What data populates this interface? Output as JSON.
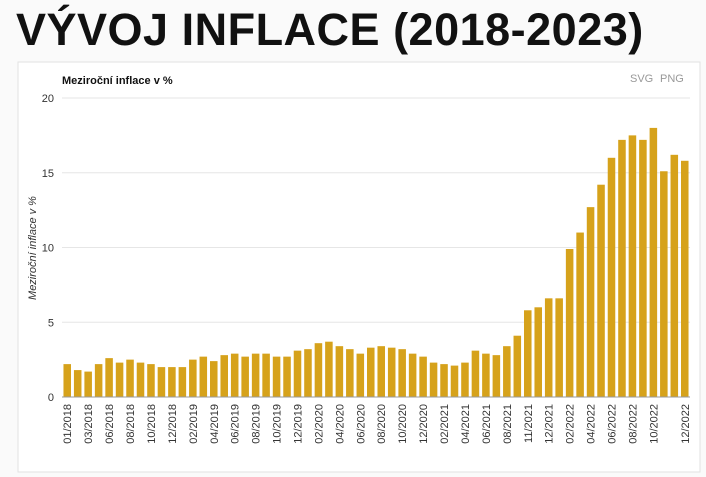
{
  "header": {
    "title": "VÝVOJ INFLACE (2018-2023)"
  },
  "toolbar": [
    "SVG",
    "PNG"
  ],
  "chart_data": {
    "type": "bar",
    "title": "Meziroční inflace v %",
    "ylabel": "Meziroční inflace v %",
    "categories": [
      "01/2018",
      null,
      "03/2018",
      null,
      "06/2018",
      null,
      "08/2018",
      null,
      "10/2018",
      null,
      "12/2018",
      null,
      "02/2019",
      null,
      "04/2019",
      null,
      "06/2019",
      null,
      "08/2019",
      null,
      "10/2019",
      null,
      "12/2019",
      null,
      "02/2020",
      null,
      "04/2020",
      null,
      "06/2020",
      null,
      "08/2020",
      null,
      "10/2020",
      null,
      "12/2020",
      null,
      "02/2021",
      null,
      "04/2021",
      null,
      "06/2021",
      null,
      "08/2021",
      null,
      "11/2021",
      null,
      "12/2021",
      null,
      "02/2022",
      null,
      "04/2022",
      null,
      "06/2022",
      null,
      "08/2022",
      null,
      "10/2022",
      null,
      null,
      "12/2022"
    ],
    "values": [
      2.2,
      1.8,
      1.7,
      2.2,
      2.6,
      2.3,
      2.5,
      2.3,
      2.2,
      2.0,
      2.0,
      2.0,
      2.5,
      2.7,
      2.4,
      2.8,
      2.9,
      2.7,
      2.9,
      2.9,
      2.7,
      2.7,
      3.1,
      3.2,
      3.6,
      3.7,
      3.4,
      3.2,
      2.9,
      3.3,
      3.4,
      3.3,
      3.2,
      2.9,
      2.7,
      2.3,
      2.2,
      2.1,
      2.3,
      3.1,
      2.9,
      2.8,
      3.4,
      4.1,
      5.8,
      6.0,
      6.6,
      6.6,
      9.9,
      11.0,
      12.7,
      14.2,
      16.0,
      17.2,
      17.5,
      17.2,
      18.0,
      15.1,
      16.2,
      15.8
    ],
    "color": "#d6a21b",
    "ylim": [
      0,
      20
    ],
    "yticks": [
      0,
      5,
      10,
      15,
      20
    ],
    "grid": true
  }
}
